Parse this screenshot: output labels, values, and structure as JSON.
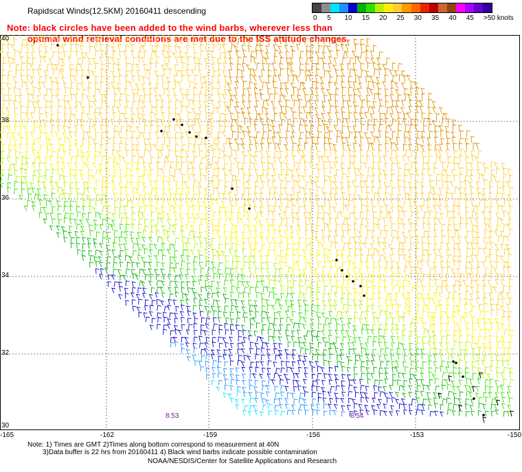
{
  "header": {
    "title": "Rapidscat Winds(12.5KM) 20160411 descending"
  },
  "legend": {
    "labels": [
      "0",
      "5",
      "10",
      "15",
      "20",
      "25",
      "30",
      "35",
      "40",
      "45",
      ">50 knots"
    ],
    "colors": [
      "#444444",
      "#8c8c8c",
      "#00e5ff",
      "#1e90ff",
      "#0000cc",
      "#00b000",
      "#33dd00",
      "#bbee00",
      "#ffee00",
      "#ffcc33",
      "#ff9900",
      "#ff6600",
      "#ee2200",
      "#bb0000",
      "#cc6633",
      "#8b4513",
      "#ff00ff",
      "#aa00ff",
      "#6600cc",
      "#330099"
    ]
  },
  "notice": {
    "line1": "Note: black circles have been added to the wind barbs, wherever less than",
    "line2": "optimal wind retrieval conditions are met due to the ISS attitude changes."
  },
  "map": {
    "lat_labels": [
      "40",
      "38",
      "36",
      "34",
      "32",
      "30"
    ],
    "lon_labels": [
      "-165",
      "-162",
      "-159",
      "-156",
      "-153",
      "-150"
    ],
    "pass_times": [
      "8:53",
      "8:54"
    ],
    "bands": [
      {
        "color": "#e09000",
        "speed_kt": 35
      },
      {
        "color": "#ffcc33",
        "speed_kt": 30
      },
      {
        "color": "#ffee00",
        "speed_kt": 22
      },
      {
        "color": "#bbee00",
        "speed_kt": 18
      },
      {
        "color": "#33dd00",
        "speed_kt": 15
      },
      {
        "color": "#00b000",
        "speed_kt": 12
      },
      {
        "color": "#0000cc",
        "speed_kt": 8
      },
      {
        "color": "#1e90ff",
        "speed_kt": 6
      },
      {
        "color": "#00e5ff",
        "speed_kt": 3
      }
    ],
    "contaminated_barb_color": "#000000"
  },
  "footer": {
    "note_line1": "Note: 1) Times are GMT 2)Times along bottom correspond to measurement at 40N",
    "note_line2": "3)Data buffer is 22 hrs from 20160411 4) Black wind barbs indicate possible contamination",
    "credit": "NOAA/NESDIS/Center for Satellite Applications and Research"
  }
}
